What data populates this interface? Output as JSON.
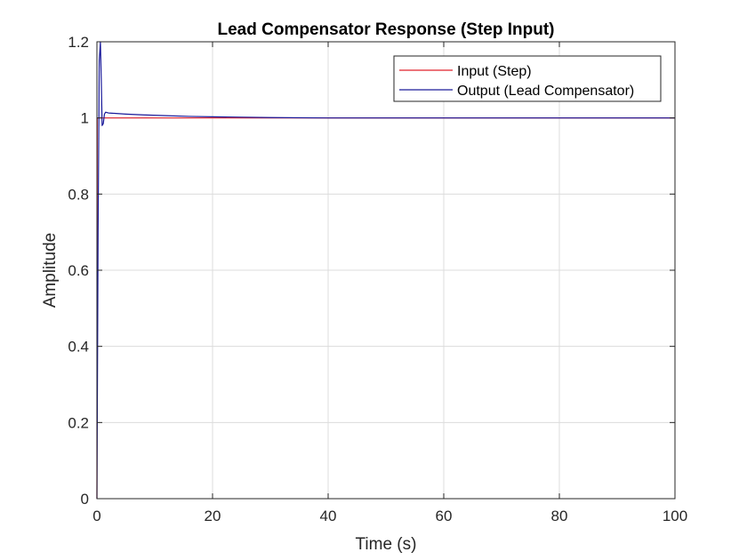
{
  "chart_data": {
    "type": "line",
    "title": "Lead Compensator Response (Step Input)",
    "xlabel": "Time (s)",
    "ylabel": "Amplitude",
    "xlim": [
      0,
      100
    ],
    "ylim": [
      0,
      1.2
    ],
    "xticks": [
      0,
      20,
      40,
      60,
      80,
      100
    ],
    "yticks": [
      0,
      0.2,
      0.4,
      0.6,
      0.8,
      1,
      1.2
    ],
    "xtick_labels": [
      "0",
      "20",
      "40",
      "60",
      "80",
      "100"
    ],
    "ytick_labels": [
      "0",
      "0.2",
      "0.4",
      "0.6",
      "0.8",
      "1",
      "1.2"
    ],
    "grid": true,
    "legend_position": "top-right",
    "series": [
      {
        "name": "Input (Step)",
        "color": "#e0202a",
        "x": [
          0,
          0.05,
          100
        ],
        "y": [
          0,
          1,
          1
        ]
      },
      {
        "name": "Output (Lead Compensator)",
        "color": "#1a1a9a",
        "x": [
          0,
          0.2,
          0.4,
          0.6,
          0.75,
          0.9,
          1.1,
          1.3,
          1.5,
          2,
          3,
          5,
          8,
          12,
          16,
          20,
          25,
          30,
          40,
          60,
          80,
          100
        ],
        "y": [
          0,
          0.7,
          1.15,
          1.2,
          1.1,
          0.98,
          0.985,
          1.01,
          1.015,
          1.013,
          1.012,
          1.01,
          1.008,
          1.006,
          1.004,
          1.003,
          1.002,
          1.001,
          1.0,
          1.0,
          1.0,
          1.0
        ]
      }
    ]
  }
}
